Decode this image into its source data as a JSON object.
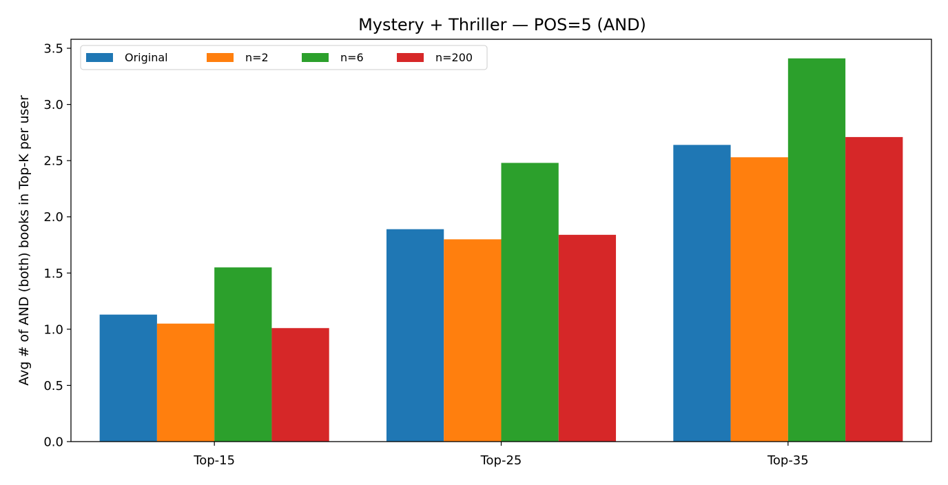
{
  "chart_data": {
    "type": "bar",
    "title": "Mystery + Thriller — POS=5 (AND)",
    "xlabel": "",
    "ylabel": "Avg # of AND (both) books in Top-K per user",
    "categories": [
      "Top-15",
      "Top-25",
      "Top-35"
    ],
    "series": [
      {
        "name": "Original",
        "color": "#1f77b4",
        "values": [
          1.13,
          1.89,
          2.64
        ]
      },
      {
        "name": "n=2",
        "color": "#ff7f0e",
        "values": [
          1.05,
          1.8,
          2.53
        ]
      },
      {
        "name": "n=6",
        "color": "#2ca02c",
        "values": [
          1.55,
          2.48,
          3.41
        ]
      },
      {
        "name": "n=200",
        "color": "#d62728",
        "values": [
          1.01,
          1.84,
          2.71
        ]
      }
    ],
    "ylim": [
      0,
      3.58
    ],
    "yticks": [
      "0.0",
      "0.5",
      "1.0",
      "1.5",
      "2.0",
      "2.5",
      "3.0",
      "3.5"
    ],
    "grid": false,
    "legend_position": "upper-left",
    "legend_columns": 4
  }
}
